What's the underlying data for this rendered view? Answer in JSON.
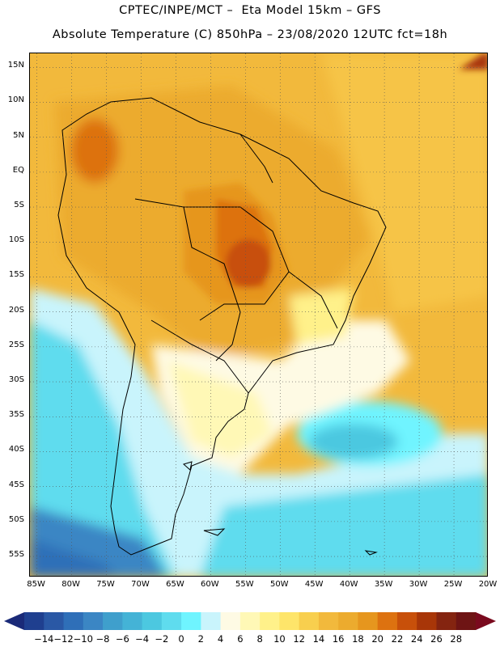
{
  "header": {
    "line1": "CPTEC/INPE/MCT –  Eta Model 15km – GFS",
    "line2": "Absolute Temperature (C) 850hPa – 23/08/2020 12UTC fct=18h"
  },
  "map": {
    "lat_labels": [
      "15N",
      "10N",
      "5N",
      "EQ",
      "5S",
      "10S",
      "15S",
      "20S",
      "25S",
      "30S",
      "35S",
      "40S",
      "45S",
      "50S",
      "55S"
    ],
    "lon_labels": [
      "85W",
      "80W",
      "75W",
      "70W",
      "65W",
      "60W",
      "55W",
      "50W",
      "45W",
      "40W",
      "35W",
      "30W",
      "25W",
      "20W"
    ],
    "extent": {
      "lon_min": -86,
      "lon_max": -20,
      "lat_min": -58,
      "lat_max": 17
    },
    "gridlines": "dotted"
  },
  "colorbar": {
    "labels": [
      "-14",
      "-12",
      "-10",
      "-8",
      "-6",
      "-4",
      "-2",
      "0",
      "2",
      "4",
      "6",
      "8",
      "10",
      "12",
      "14",
      "16",
      "18",
      "20",
      "22",
      "24",
      "26",
      "28"
    ],
    "colors": [
      "#1f3f8f",
      "#2a58a5",
      "#2f6fb8",
      "#3b86c4",
      "#3f9fcc",
      "#44b3d6",
      "#4cc8e0",
      "#5fdcee",
      "#6ff4ff",
      "#c9f4fc",
      "#fefae4",
      "#fff8b6",
      "#fff18a",
      "#fee56a",
      "#f8cf4e",
      "#f2b93c",
      "#ecab2e",
      "#e6961e",
      "#dd7210",
      "#c8500a",
      "#a83608",
      "#842410",
      "#6e1414"
    ],
    "left_arrow_color": "#1a2a78",
    "right_arrow_color": "#7a0a1e"
  }
}
